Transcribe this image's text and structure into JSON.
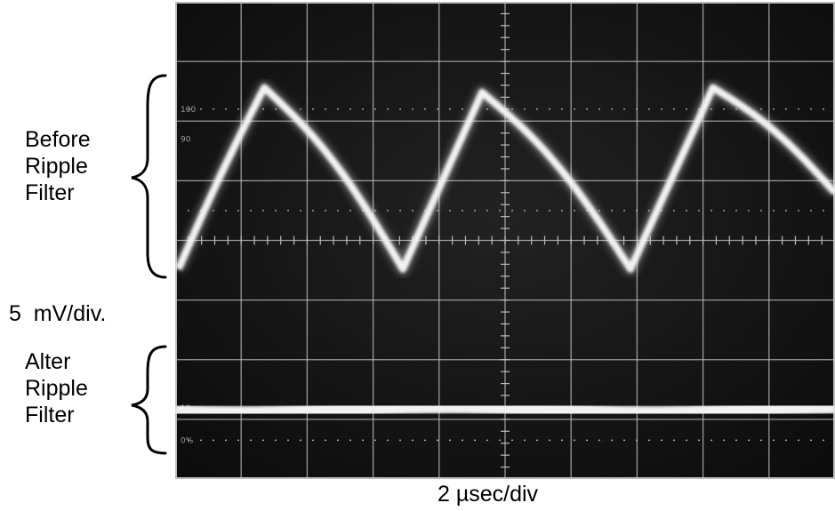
{
  "annotations": {
    "before": [
      "Before",
      "Ripple",
      "Filter"
    ],
    "after": [
      "Alter",
      "Ripple",
      "Filter"
    ],
    "vertical_scale": "5  mV/div.",
    "time_scale": "2 µsec/div"
  },
  "scope": {
    "screen_color": "#161616",
    "grid_color": "#bdbdbd",
    "trace_color": "#f2f2f2",
    "reticle_labels": [
      "100",
      "90",
      "10",
      "0%"
    ]
  },
  "colors": {
    "background": "#ffffff",
    "text": "#000000"
  }
}
